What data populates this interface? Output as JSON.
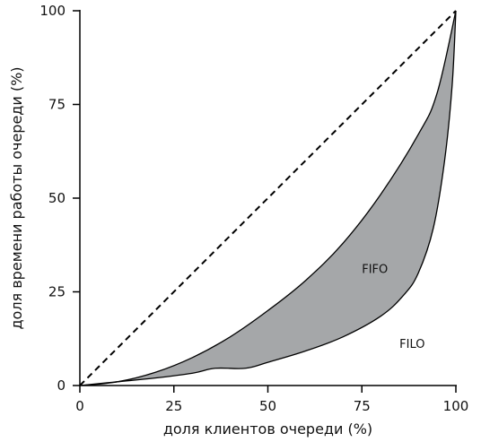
{
  "chart_data": {
    "type": "area",
    "xlabel": "доля  клиентов  очереди (%)",
    "ylabel": "доля времени работы очереди (%)",
    "xlim": [
      0,
      100
    ],
    "ylim": [
      0,
      100
    ],
    "xticks": [
      "0",
      "25",
      "50",
      "75",
      "100"
    ],
    "yticks": [
      "0",
      "25",
      "50",
      "75",
      "100"
    ],
    "grid": false,
    "series": [
      {
        "name": "FIFO",
        "x": [
          0,
          10,
          20,
          30,
          40,
          50,
          60,
          70,
          80,
          90,
          95,
          100
        ],
        "y": [
          0,
          1,
          3.5,
          7.5,
          13,
          20,
          28,
          38,
          51,
          67,
          78,
          100
        ]
      },
      {
        "name": "FILO",
        "x": [
          0,
          10,
          20,
          30,
          36,
          44,
          50,
          60,
          70,
          80,
          86,
          90,
          94,
          97,
          99,
          100
        ],
        "y": [
          0,
          1,
          2,
          3.3,
          4.6,
          4.6,
          6.2,
          9.2,
          13,
          18.5,
          24,
          30,
          42,
          60,
          80,
          100
        ]
      },
      {
        "name": "",
        "x": [
          0,
          100
        ],
        "y": [
          0,
          100
        ],
        "style": "dashed"
      }
    ],
    "colors": {
      "fill": "#a5a7a9",
      "line": "#000000"
    }
  }
}
